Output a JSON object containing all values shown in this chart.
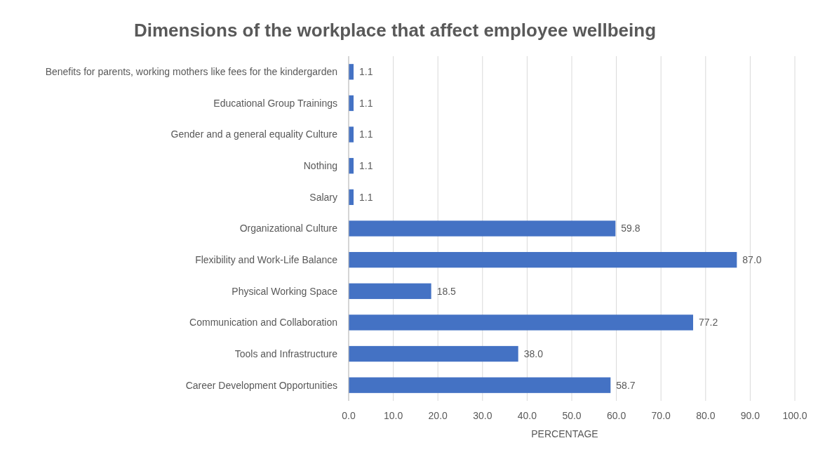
{
  "chart_data": {
    "type": "bar",
    "orientation": "horizontal",
    "title": "Dimensions of the workplace that affect employee wellbeing",
    "xlabel": "PERCENTAGE",
    "categories": [
      "Benefits for parents, working mothers like fees for the kindergarden",
      "Educational Group Trainings",
      "Gender and a general equality Culture",
      "Nothing",
      "Salary",
      "Organizational Culture",
      "Flexibility and Work-Life Balance",
      "Physical Working Space",
      "Communication and Collaboration",
      "Tools and Infrastructure",
      "Career Development Opportunities"
    ],
    "values": [
      1.1,
      1.1,
      1.1,
      1.1,
      1.1,
      59.8,
      87.0,
      18.5,
      77.2,
      38.0,
      58.7
    ],
    "value_labels": [
      "1.1",
      "1.1",
      "1.1",
      "1.1",
      "1.1",
      "59.8",
      "87.0",
      "18.5",
      "77.2",
      "38.0",
      "58.7"
    ],
    "color": "#4472c4",
    "xlim": [
      0,
      100
    ],
    "xticks": [
      {
        "value": 0,
        "label": "0.0"
      },
      {
        "value": 10,
        "label": "10.0"
      },
      {
        "value": 20,
        "label": "20.0"
      },
      {
        "value": 30,
        "label": "30.0"
      },
      {
        "value": 40,
        "label": "40.0"
      },
      {
        "value": 50,
        "label": "50.0"
      },
      {
        "value": 60,
        "label": "60.0"
      },
      {
        "value": 70,
        "label": "70.0"
      },
      {
        "value": 80,
        "label": "80.0"
      },
      {
        "value": 90,
        "label": "90.0"
      },
      {
        "value": 100,
        "label": "100.0"
      }
    ],
    "grid": "x"
  }
}
